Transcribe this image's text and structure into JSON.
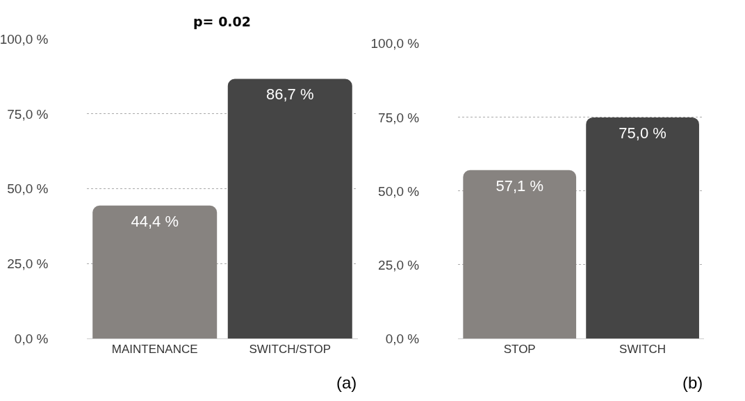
{
  "chart_data": [
    {
      "type": "bar",
      "title": "p= 0.02",
      "categories": [
        "MAINTENANCE",
        "SWITCH/STOP"
      ],
      "values": [
        44.4,
        86.7
      ],
      "colors": [
        "#878380",
        "#454545"
      ],
      "value_labels": [
        "44,4 %",
        "86,7 %"
      ],
      "ylim": [
        0,
        100
      ],
      "yticks": [
        {
          "value": 0,
          "label": "0,0 %"
        },
        {
          "value": 25,
          "label": "25,0 %"
        },
        {
          "value": 50,
          "label": "50,0 %"
        },
        {
          "value": 75,
          "label": "75,0 %"
        },
        {
          "value": 100,
          "label": "100,0 %"
        }
      ],
      "grid": "y",
      "annotations": [
        "(a)"
      ]
    },
    {
      "type": "bar",
      "categories": [
        "STOP",
        "SWITCH"
      ],
      "values": [
        57.1,
        75.0
      ],
      "colors": [
        "#878380",
        "#454545"
      ],
      "value_labels": [
        "57,1 %",
        "75,0 %"
      ],
      "ylim": [
        0,
        100
      ],
      "yticks": [
        {
          "value": 0,
          "label": "0,0 %"
        },
        {
          "value": 25,
          "label": "25,0 %"
        },
        {
          "value": 50,
          "label": "50,0 %"
        },
        {
          "value": 75,
          "label": "75,0 %"
        },
        {
          "value": 100,
          "label": "100,0 %"
        }
      ],
      "grid": "y",
      "annotations": [
        "(b)"
      ]
    }
  ]
}
